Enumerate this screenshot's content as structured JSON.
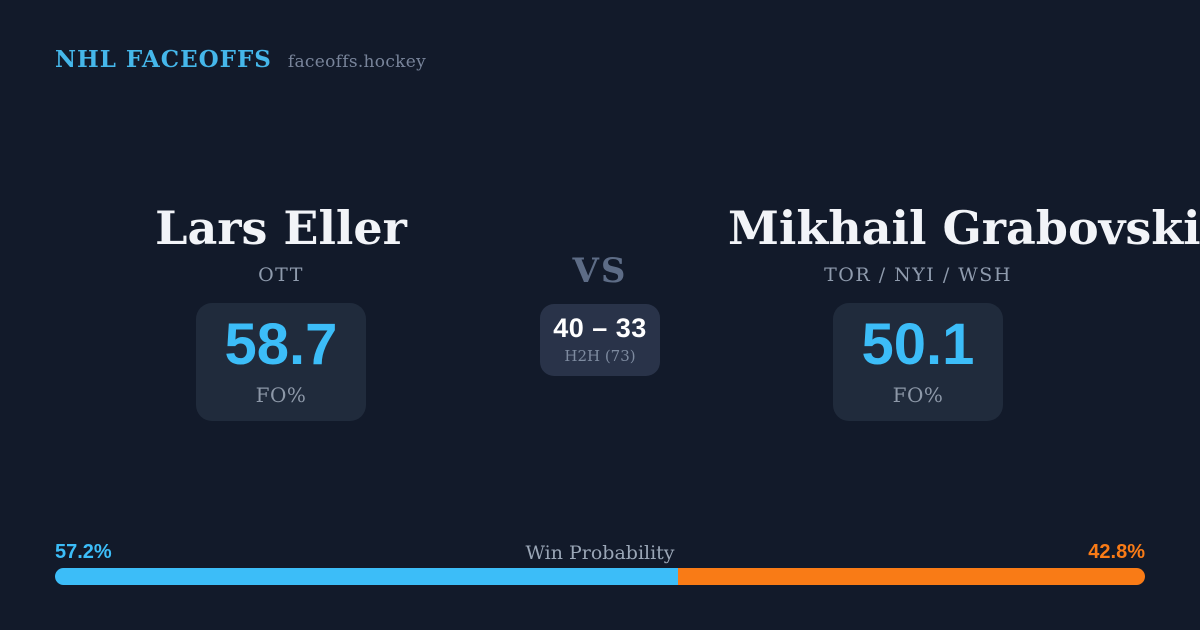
{
  "header": {
    "brand": "NHL FACEOFFS",
    "site": "faceoffs.hockey"
  },
  "players": {
    "left": {
      "name": "Lars Eller",
      "teams": "OTT",
      "fo_value": "58.7",
      "stat_label": "FO%"
    },
    "right": {
      "name": "Mikhail Grabovski",
      "teams": "TOR / NYI / WSH",
      "fo_value": "50.1",
      "stat_label": "FO%"
    }
  },
  "matchup": {
    "vs_label": "VS",
    "h2h_score": "40 – 33",
    "h2h_label": "H2H (73)"
  },
  "win_probability": {
    "title": "Win Probability",
    "left_pct_label": "57.2%",
    "right_pct_label": "42.8%",
    "left_value": 57.2,
    "right_value": 42.8,
    "left_color": "#3cbdf8",
    "right_color": "#f97b16"
  },
  "colors": {
    "background": "#121a2a",
    "card": "#202b3c",
    "card_center": "#293349",
    "accent_blue": "#3cbdf8",
    "accent_orange": "#f97b16",
    "brand_blue": "#45b7ea"
  }
}
